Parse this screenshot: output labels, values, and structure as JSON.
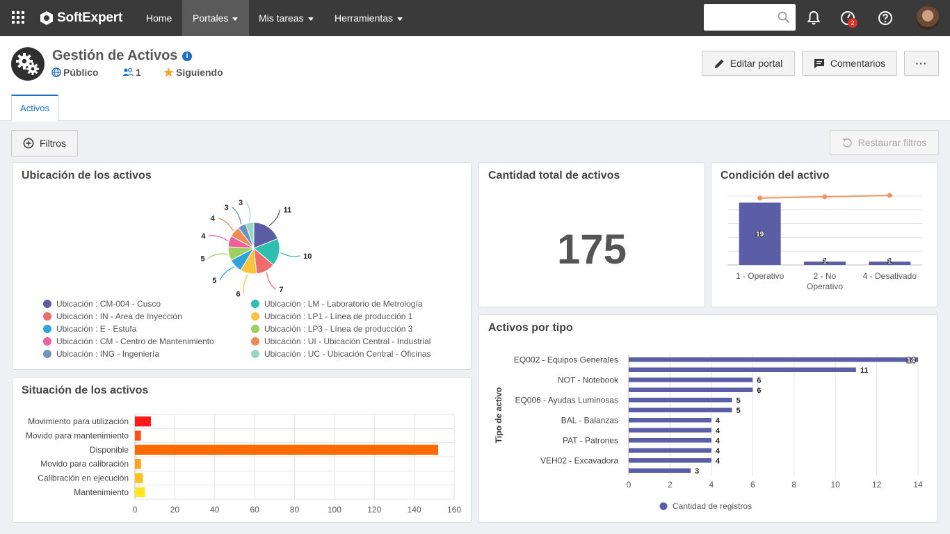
{
  "nav": {
    "brand": "SoftExpert",
    "items": [
      {
        "label": "Home",
        "active": false,
        "has_caret": false
      },
      {
        "label": "Portales",
        "active": true,
        "has_caret": true
      },
      {
        "label": "Mis tareas",
        "active": false,
        "has_caret": true
      },
      {
        "label": "Herramientas",
        "active": false,
        "has_caret": true
      }
    ],
    "search_placeholder": "",
    "notification_badge": "2"
  },
  "portal": {
    "title": "Gestión de Activos",
    "visibility": "Público",
    "members": "1",
    "following": "Siguiendo",
    "edit_button": "Editar portal",
    "comments_button": "Comentarios",
    "more_button": "···",
    "tab": "Activos"
  },
  "filters": {
    "filters_button": "Filtros",
    "restore_button": "Restaurar filtros"
  },
  "widgets": {
    "location_title": "Ubicación de los activos",
    "total_title": "Cantidad total de activos",
    "total_value": "175",
    "condition_title": "Condición del activo",
    "status_title": "Situación de los activos",
    "type_title": "Activos por tipo",
    "type_axis_title": "Tipo de activo",
    "type_legend": "Cantidad de registros"
  },
  "colors": {
    "accent": "#1f6fbf",
    "series": "#5b5ea6"
  },
  "chart_data": [
    {
      "id": "location",
      "type": "pie",
      "title": "Ubicación de los activos",
      "slices": [
        {
          "label": "Ubicación : CM-004 - Cusco",
          "value": 11,
          "color": "#5b5ea6"
        },
        {
          "label": "Ubicación : LM - Laboratorio de Metrología",
          "value": 10,
          "color": "#2fbfb0"
        },
        {
          "label": "Ubicación : IN - Area de Inyección",
          "value": 7,
          "color": "#f06c6c"
        },
        {
          "label": "Ubicación : LP1 - Línea de producción 1",
          "value": 6,
          "color": "#fbc23d"
        },
        {
          "label": "Ubicación : E - Estufa",
          "value": 5,
          "color": "#2ea3dd"
        },
        {
          "label": "Ubicación : LP3 - Línea de producción 3",
          "value": 5,
          "color": "#9ccf5f"
        },
        {
          "label": "Ubicación : CM - Centro de Mantenimiento",
          "value": 4,
          "color": "#f0609a"
        },
        {
          "label": "Ubicación : UI - Ubicación Central - Industrial",
          "value": 4,
          "color": "#f08b56"
        },
        {
          "label": "Ubicación : ING - Ingeniería",
          "value": 3,
          "color": "#6e93c2"
        },
        {
          "label": "Ubicación : UC - Ubicación Central - Oficinas",
          "value": 3,
          "color": "#95d7c3"
        }
      ]
    },
    {
      "id": "condition",
      "type": "bar",
      "title": "Condición del activo",
      "categories": [
        "1 - Operativo",
        "2 - No Operativo",
        "4 - Desativado"
      ],
      "values": [
        19,
        1,
        1
      ],
      "ylim": [
        0,
        21
      ],
      "line_values": [
        20.4,
        20.8,
        21.2
      ],
      "bar_color": "#5b5ea6",
      "line_color": "#f0965a",
      "grid": true
    },
    {
      "id": "status",
      "type": "bar",
      "orientation": "horizontal",
      "title": "Situación de los activos",
      "categories": [
        "Movimiento para utilización",
        "Movido para mantenimiento",
        "Disponible",
        "Movido para calibración",
        "Calibración en ejecución",
        "Mantenimiento"
      ],
      "values": [
        8,
        3,
        152,
        3,
        4,
        5
      ],
      "colors": [
        "#ff1a1a",
        "#ff4d1a",
        "#ff6a00",
        "#ffa31a",
        "#ffc21a",
        "#ffe61a"
      ],
      "xlim": [
        0,
        160
      ],
      "ticks": [
        0,
        20,
        40,
        60,
        80,
        100,
        120,
        140,
        160
      ],
      "grid": true
    },
    {
      "id": "type",
      "type": "bar",
      "orientation": "horizontal",
      "title": "Activos por tipo",
      "ylabel": "Tipo de activo",
      "categories": [
        "EQ002 - Equipos Generales",
        "",
        "NOT - Notebook",
        "",
        "EQ006 - Ayudas Luminosas",
        "",
        "BAL - Balanzas",
        "",
        "PAT - Patrones",
        "",
        "VEH02 - Excavadora",
        ""
      ],
      "values": [
        14,
        11,
        6,
        6,
        5,
        5,
        4,
        4,
        4,
        4,
        4,
        3
      ],
      "xlim": [
        0,
        14
      ],
      "ticks": [
        0,
        2,
        4,
        6,
        8,
        10,
        12,
        14
      ],
      "series": [
        {
          "name": "Cantidad de registros",
          "color": "#5b5ea6"
        }
      ],
      "grid": true
    }
  ]
}
